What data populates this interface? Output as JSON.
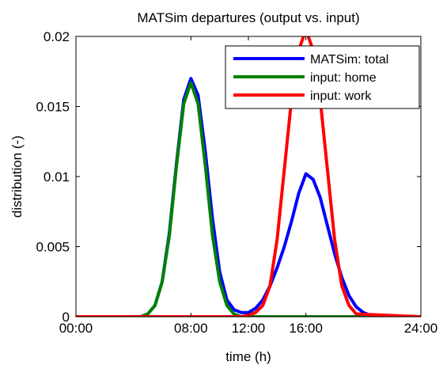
{
  "chart_data": {
    "type": "line",
    "title": "MATSim departures (output vs. input)",
    "xlabel": "time (h)",
    "ylabel": "distribution (-)",
    "xlim": [
      0,
      24
    ],
    "ylim": [
      0,
      0.02
    ],
    "x_ticks": [
      {
        "value": 0,
        "label": "00:00"
      },
      {
        "value": 8,
        "label": "08:00"
      },
      {
        "value": 12,
        "label": "12:00"
      },
      {
        "value": 16,
        "label": "16:00"
      },
      {
        "value": 24,
        "label": "24:00"
      }
    ],
    "y_ticks": [
      {
        "value": 0,
        "label": "0"
      },
      {
        "value": 0.005,
        "label": "0.005"
      },
      {
        "value": 0.01,
        "label": "0.01"
      },
      {
        "value": 0.015,
        "label": "0.015"
      },
      {
        "value": 0.02,
        "label": "0.02"
      }
    ],
    "grid": false,
    "legend_position": "top-right",
    "series": [
      {
        "name": "MATSim: total",
        "color": "#0000ff",
        "x": [
          0,
          4.5,
          5,
          5.5,
          6,
          6.5,
          7,
          7.5,
          8,
          8.5,
          9,
          9.5,
          10,
          10.5,
          11,
          11.5,
          12,
          12.5,
          13,
          13.5,
          14,
          14.5,
          15,
          15.5,
          16,
          16.5,
          17,
          17.5,
          18,
          18.5,
          19,
          19.5,
          20,
          20.5,
          21,
          24
        ],
        "y": [
          0,
          0,
          0.0002,
          0.0008,
          0.0025,
          0.006,
          0.011,
          0.0155,
          0.017,
          0.0158,
          0.0118,
          0.007,
          0.0032,
          0.0012,
          0.0005,
          0.0003,
          0.0003,
          0.0006,
          0.0012,
          0.0022,
          0.0035,
          0.005,
          0.0068,
          0.0088,
          0.0102,
          0.0098,
          0.0085,
          0.0065,
          0.0045,
          0.0028,
          0.0015,
          0.0007,
          0.0003,
          0.0001,
          0,
          0
        ]
      },
      {
        "name": "input: home",
        "color": "#008000",
        "x": [
          0,
          4.5,
          5,
          5.5,
          6,
          6.5,
          7,
          7.5,
          8,
          8.5,
          9,
          9.5,
          10,
          10.5,
          11,
          11.5,
          24
        ],
        "y": [
          0,
          0,
          0.0002,
          0.0008,
          0.0025,
          0.0058,
          0.0108,
          0.0152,
          0.0167,
          0.0152,
          0.0108,
          0.0058,
          0.0025,
          0.0008,
          0.0002,
          0,
          0
        ]
      },
      {
        "name": "input: work",
        "color": "#ff0000",
        "x": [
          0,
          11.5,
          12,
          12.5,
          13,
          13.5,
          14,
          14.5,
          15,
          15.5,
          16,
          16.5,
          17,
          17.5,
          18,
          18.5,
          19,
          19.5,
          24
        ],
        "y": [
          0,
          0,
          0.0001,
          0.0003,
          0.0008,
          0.0022,
          0.0055,
          0.0105,
          0.0155,
          0.019,
          0.0205,
          0.019,
          0.0155,
          0.0105,
          0.0055,
          0.0022,
          0.0008,
          0.0002,
          0
        ]
      }
    ]
  }
}
